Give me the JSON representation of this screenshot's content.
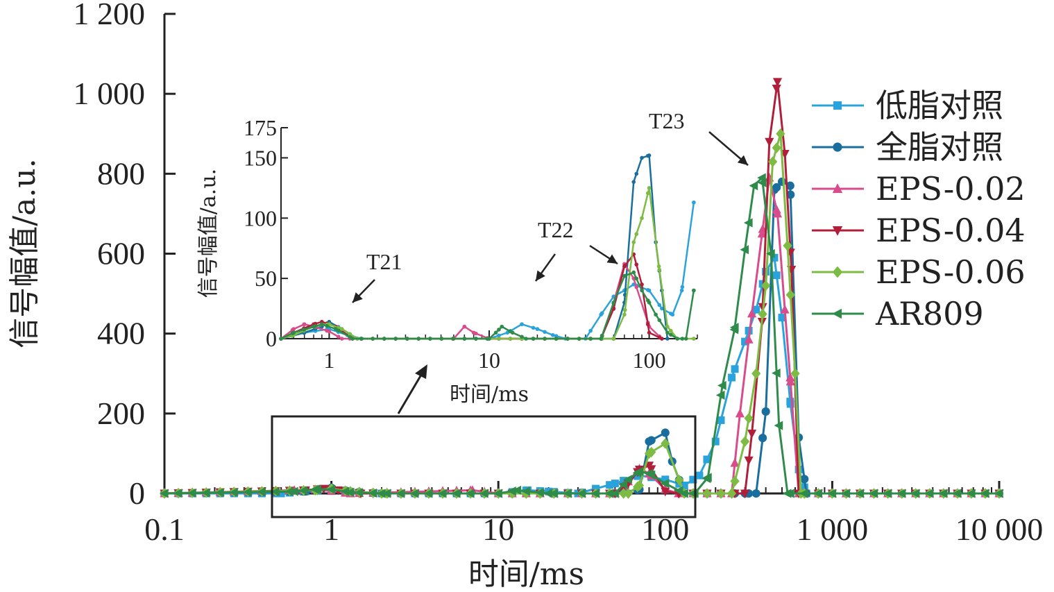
{
  "chart_data": [
    {
      "type": "line",
      "x_scale": "log",
      "xlabel": "时间/ms",
      "ylabel": "信号幅值/a.u.",
      "xlim": [
        0.1,
        10000
      ],
      "ylim": [
        0,
        1200
      ],
      "x_ticks": [
        "0.1",
        "1",
        "10",
        "100",
        "1 000",
        "10 000"
      ],
      "y_ticks": [
        "0",
        "200",
        "400",
        "600",
        "800",
        "1 000",
        "1 200"
      ],
      "legend_position": "right",
      "annotations": [
        "T23"
      ],
      "series": [
        {
          "name": "低脂对照",
          "color": "#2aa3dc",
          "marker": "square",
          "points": [
            [
              0.1,
              0
            ],
            [
              0.5,
              0
            ],
            [
              0.7,
              5
            ],
            [
              1,
              8
            ],
            [
              1.3,
              3
            ],
            [
              2,
              0
            ],
            [
              10,
              0
            ],
            [
              15,
              8
            ],
            [
              20,
              5
            ],
            [
              30,
              0
            ],
            [
              50,
              25
            ],
            [
              70,
              45
            ],
            [
              100,
              35
            ],
            [
              130,
              20
            ],
            [
              160,
              45
            ],
            [
              200,
              130
            ],
            [
              250,
              290
            ],
            [
              300,
              380
            ],
            [
              350,
              460
            ],
            [
              400,
              555
            ],
            [
              450,
              590
            ],
            [
              500,
              440
            ],
            [
              560,
              230
            ],
            [
              630,
              60
            ],
            [
              700,
              0
            ],
            [
              1000,
              0
            ],
            [
              10000,
              0
            ]
          ]
        },
        {
          "name": "全脂对照",
          "color": "#1a6e9e",
          "marker": "circle",
          "points": [
            [
              0.1,
              0
            ],
            [
              0.7,
              5
            ],
            [
              1,
              14
            ],
            [
              1.3,
              5
            ],
            [
              2,
              0
            ],
            [
              50,
              0
            ],
            [
              70,
              10
            ],
            [
              80,
              130
            ],
            [
              100,
              152
            ],
            [
              110,
              80
            ],
            [
              130,
              0
            ],
            [
              300,
              0
            ],
            [
              350,
              0
            ],
            [
              400,
              205
            ],
            [
              450,
              760
            ],
            [
              500,
              780
            ],
            [
              560,
              770
            ],
            [
              630,
              140
            ],
            [
              700,
              0
            ],
            [
              10000,
              0
            ]
          ]
        },
        {
          "name": "EPS-0.02",
          "color": "#d94c8c",
          "marker": "triangle",
          "points": [
            [
              0.1,
              0
            ],
            [
              0.6,
              8
            ],
            [
              0.8,
              10
            ],
            [
              1,
              6
            ],
            [
              1.3,
              0
            ],
            [
              7,
              8
            ],
            [
              10,
              0
            ],
            [
              50,
              0
            ],
            [
              60,
              30
            ],
            [
              70,
              62
            ],
            [
              80,
              50
            ],
            [
              100,
              10
            ],
            [
              120,
              0
            ],
            [
              250,
              0
            ],
            [
              280,
              200
            ],
            [
              330,
              450
            ],
            [
              380,
              650
            ],
            [
              420,
              790
            ],
            [
              470,
              700
            ],
            [
              520,
              460
            ],
            [
              560,
              290
            ],
            [
              630,
              0
            ],
            [
              10000,
              0
            ]
          ]
        },
        {
          "name": "EPS-0.04",
          "color": "#b01e3a",
          "marker": "triangle-down",
          "points": [
            [
              0.1,
              0
            ],
            [
              0.7,
              8
            ],
            [
              0.9,
              12
            ],
            [
              1.1,
              8
            ],
            [
              1.5,
              0
            ],
            [
              10,
              0
            ],
            [
              50,
              0
            ],
            [
              60,
              25
            ],
            [
              70,
              60
            ],
            [
              80,
              70
            ],
            [
              100,
              5
            ],
            [
              120,
              0
            ],
            [
              300,
              0
            ],
            [
              330,
              150
            ],
            [
              380,
              430
            ],
            [
              420,
              880
            ],
            [
              470,
              1030
            ],
            [
              520,
              850
            ],
            [
              570,
              560
            ],
            [
              630,
              0
            ],
            [
              10000,
              0
            ]
          ]
        },
        {
          "name": "EPS-0.06",
          "color": "#7dbb42",
          "marker": "diamond",
          "points": [
            [
              0.1,
              0
            ],
            [
              0.8,
              8
            ],
            [
              1,
              12
            ],
            [
              1.3,
              5
            ],
            [
              2,
              0
            ],
            [
              60,
              0
            ],
            [
              70,
              20
            ],
            [
              80,
              100
            ],
            [
              100,
              125
            ],
            [
              130,
              0
            ],
            [
              250,
              0
            ],
            [
              300,
              130
            ],
            [
              350,
              300
            ],
            [
              400,
              520
            ],
            [
              440,
              830
            ],
            [
              490,
              900
            ],
            [
              540,
              620
            ],
            [
              600,
              300
            ],
            [
              650,
              0
            ],
            [
              10000,
              0
            ]
          ]
        },
        {
          "name": "AR809",
          "color": "#2e8b4a",
          "marker": "triangle-left",
          "points": [
            [
              0.1,
              0
            ],
            [
              0.6,
              5
            ],
            [
              0.8,
              10
            ],
            [
              1,
              10
            ],
            [
              1.3,
              3
            ],
            [
              2,
              0
            ],
            [
              10,
              0
            ],
            [
              13,
              8
            ],
            [
              20,
              0
            ],
            [
              50,
              0
            ],
            [
              60,
              35
            ],
            [
              70,
              55
            ],
            [
              80,
              50
            ],
            [
              100,
              25
            ],
            [
              130,
              0
            ],
            [
              150,
              0
            ],
            [
              180,
              40
            ],
            [
              220,
              270
            ],
            [
              260,
              410
            ],
            [
              300,
              610
            ],
            [
              340,
              770
            ],
            [
              380,
              790
            ],
            [
              430,
              600
            ],
            [
              480,
              170
            ],
            [
              540,
              0
            ],
            [
              10000,
              0
            ]
          ]
        }
      ]
    },
    {
      "type": "line",
      "x_scale": "log",
      "xlabel": "时间/ms",
      "ylabel": "信号幅值/a.u.",
      "xlim": [
        0.5,
        200
      ],
      "ylim": [
        0,
        175
      ],
      "x_ticks": [
        "1",
        "10",
        "100"
      ],
      "y_ticks": [
        "0",
        "50",
        "100",
        "150",
        "175"
      ],
      "annotations": [
        "T21",
        "T22"
      ],
      "series": [
        {
          "name": "低脂对照",
          "color": "#2aa3dc",
          "points": [
            [
              0.5,
              0
            ],
            [
              0.7,
              5
            ],
            [
              1,
              8
            ],
            [
              1.3,
              3
            ],
            [
              1.6,
              0
            ],
            [
              10,
              0
            ],
            [
              13,
              5
            ],
            [
              16,
              12
            ],
            [
              20,
              8
            ],
            [
              25,
              3
            ],
            [
              30,
              0
            ],
            [
              40,
              0
            ],
            [
              50,
              20
            ],
            [
              60,
              35
            ],
            [
              70,
              40
            ],
            [
              80,
              45
            ],
            [
              100,
              40
            ],
            [
              120,
              25
            ],
            [
              140,
              20
            ],
            [
              160,
              40
            ],
            [
              190,
              113
            ]
          ]
        },
        {
          "name": "全脂对照",
          "color": "#1a6e9e",
          "points": [
            [
              0.5,
              0
            ],
            [
              0.7,
              5
            ],
            [
              0.9,
              10
            ],
            [
              1,
              14
            ],
            [
              1.2,
              8
            ],
            [
              1.5,
              0
            ],
            [
              50,
              0
            ],
            [
              60,
              0
            ],
            [
              70,
              30
            ],
            [
              80,
              130
            ],
            [
              90,
              150
            ],
            [
              100,
              152
            ],
            [
              110,
              80
            ],
            [
              120,
              40
            ],
            [
              130,
              0
            ]
          ]
        },
        {
          "name": "EPS-0.02",
          "color": "#d94c8c",
          "points": [
            [
              0.5,
              0
            ],
            [
              0.6,
              8
            ],
            [
              0.7,
              12
            ],
            [
              0.8,
              10
            ],
            [
              1,
              6
            ],
            [
              1.2,
              0
            ],
            [
              6,
              0
            ],
            [
              7,
              10
            ],
            [
              8,
              5
            ],
            [
              10,
              0
            ],
            [
              50,
              0
            ],
            [
              60,
              30
            ],
            [
              70,
              62
            ],
            [
              80,
              50
            ],
            [
              100,
              10
            ],
            [
              120,
              0
            ]
          ]
        },
        {
          "name": "EPS-0.04",
          "color": "#b01e3a",
          "points": [
            [
              0.5,
              0
            ],
            [
              0.6,
              5
            ],
            [
              0.8,
              12
            ],
            [
              0.9,
              14
            ],
            [
              1.1,
              10
            ],
            [
              1.4,
              0
            ],
            [
              50,
              0
            ],
            [
              60,
              25
            ],
            [
              70,
              60
            ],
            [
              80,
              70
            ],
            [
              90,
              45
            ],
            [
              100,
              5
            ],
            [
              120,
              0
            ]
          ]
        },
        {
          "name": "EPS-0.06",
          "color": "#7dbb42",
          "points": [
            [
              0.5,
              0
            ],
            [
              0.6,
              3
            ],
            [
              0.8,
              10
            ],
            [
              1,
              12
            ],
            [
              1.2,
              8
            ],
            [
              1.5,
              0
            ],
            [
              60,
              0
            ],
            [
              70,
              20
            ],
            [
              80,
              80
            ],
            [
              90,
              100
            ],
            [
              100,
              125
            ],
            [
              115,
              60
            ],
            [
              130,
              10
            ],
            [
              150,
              0
            ],
            [
              190,
              0
            ]
          ]
        },
        {
          "name": "AR809",
          "color": "#2e8b4a",
          "points": [
            [
              0.5,
              0
            ],
            [
              0.6,
              5
            ],
            [
              0.8,
              10
            ],
            [
              0.9,
              12
            ],
            [
              1.1,
              8
            ],
            [
              1.4,
              0
            ],
            [
              10,
              0
            ],
            [
              11,
              5
            ],
            [
              12,
              10
            ],
            [
              14,
              5
            ],
            [
              17,
              0
            ],
            [
              50,
              0
            ],
            [
              60,
              30
            ],
            [
              70,
              52
            ],
            [
              80,
              55
            ],
            [
              90,
              40
            ],
            [
              100,
              30
            ],
            [
              110,
              20
            ],
            [
              130,
              5
            ],
            [
              150,
              0
            ],
            [
              170,
              0
            ],
            [
              190,
              40
            ]
          ]
        }
      ]
    }
  ]
}
